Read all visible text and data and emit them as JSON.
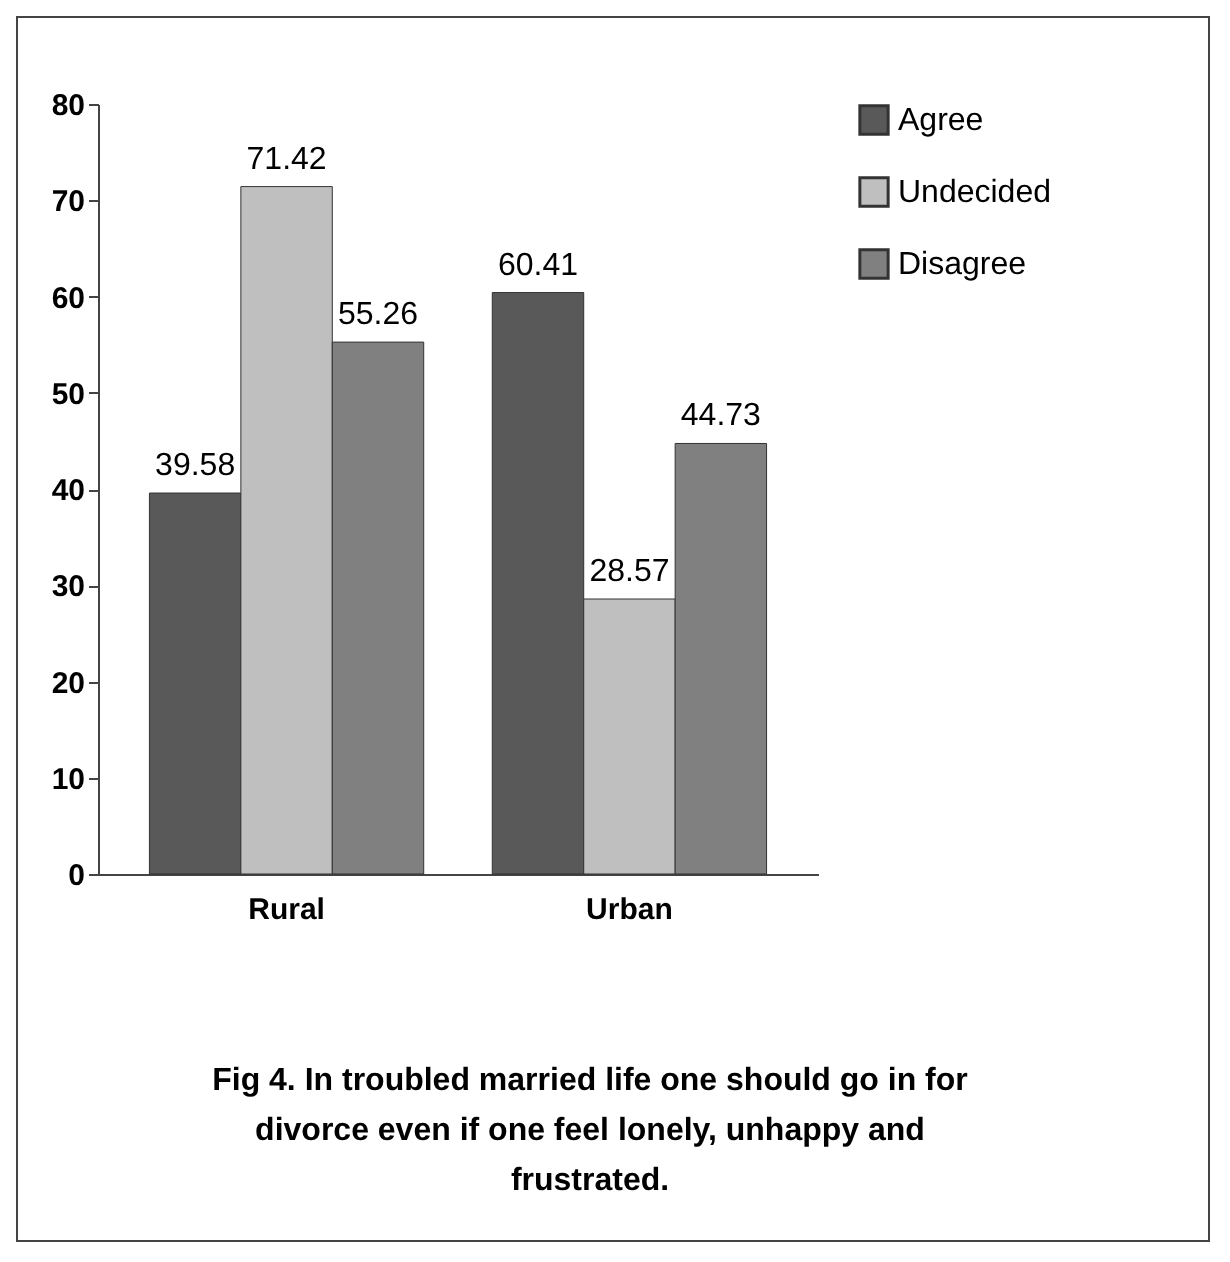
{
  "chart_data": {
    "type": "bar",
    "categories": [
      "Rural",
      "Urban"
    ],
    "series": [
      {
        "name": "Agree",
        "color": "#595959",
        "values": [
          39.58,
          60.41
        ]
      },
      {
        "name": "Undecided",
        "color": "#bfbfbf",
        "values": [
          71.42,
          28.57
        ]
      },
      {
        "name": "Disagree",
        "color": "#808080",
        "values": [
          55.26,
          44.73
        ]
      }
    ],
    "ylim": [
      0,
      80
    ],
    "yticks": [
      0,
      10,
      20,
      30,
      40,
      50,
      60,
      70,
      80
    ],
    "grid": false,
    "legend": "right",
    "data_labels": true,
    "annotations": [
      "Fig 4. In troubled married life one should go in for divorce even if one feel lonely, unhappy and frustrated."
    ]
  }
}
